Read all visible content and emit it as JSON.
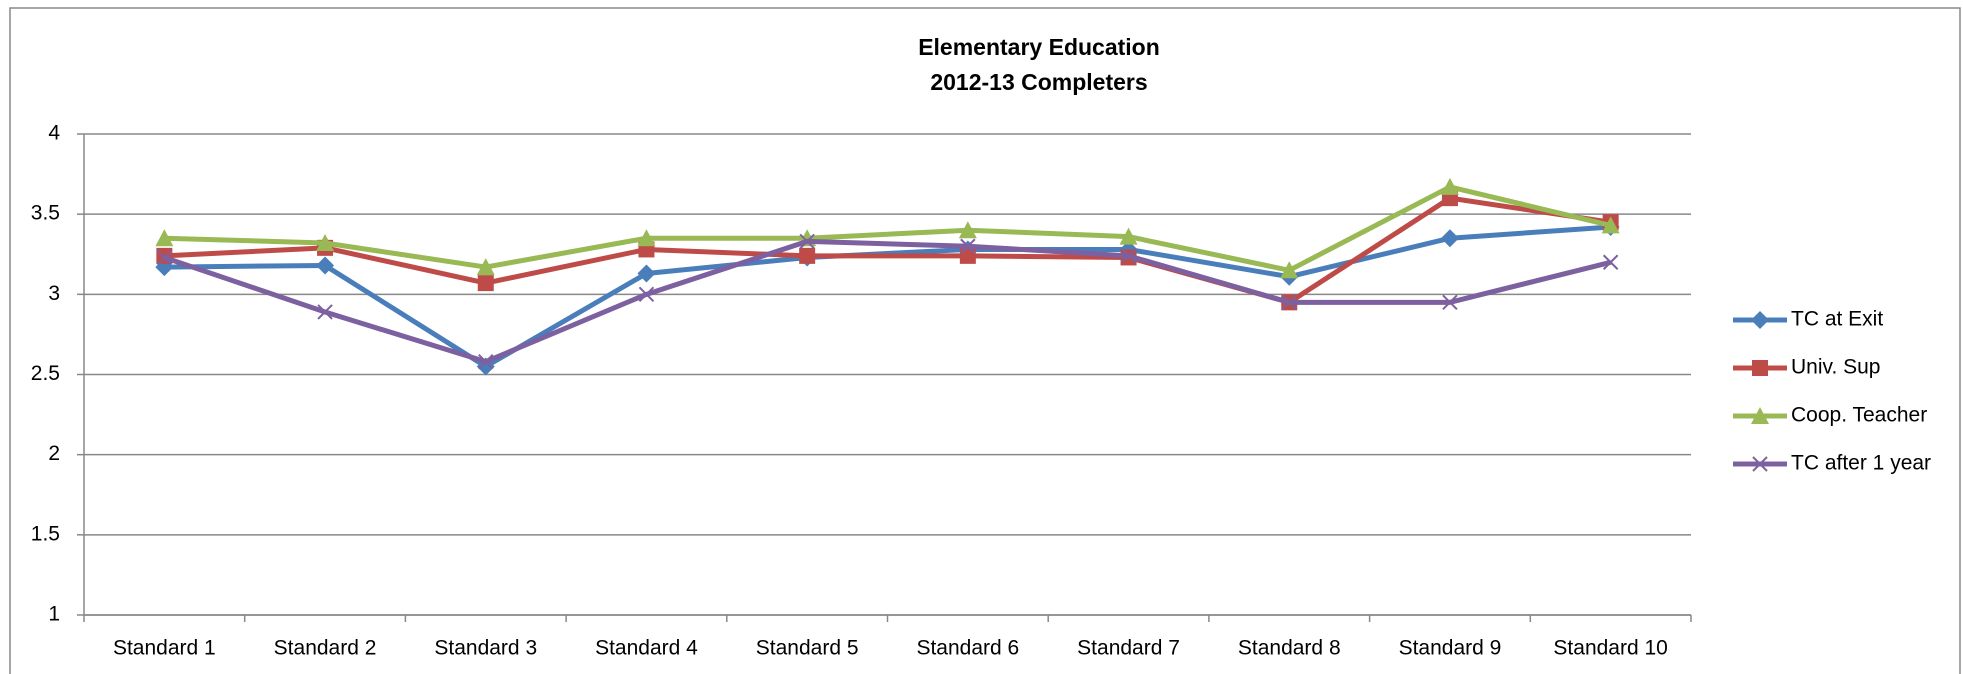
{
  "chart_data": {
    "type": "line",
    "title": "Elementary Education",
    "subtitle": "2012-13 Completers",
    "categories": [
      "Standard 1",
      "Standard 2",
      "Standard 3",
      "Standard 4",
      "Standard 5",
      "Standard 6",
      "Standard 7",
      "Standard 8",
      "Standard 9",
      "Standard 10"
    ],
    "series": [
      {
        "name": "TC at Exit",
        "color": "#4a7ebb",
        "marker": "diamond",
        "values": [
          3.17,
          3.18,
          2.55,
          3.13,
          3.23,
          3.28,
          3.28,
          3.11,
          3.35,
          3.42
        ]
      },
      {
        "name": "Univ. Sup",
        "color": "#be4b48",
        "marker": "square",
        "values": [
          3.24,
          3.29,
          3.07,
          3.28,
          3.24,
          3.24,
          3.23,
          2.95,
          3.6,
          3.45
        ]
      },
      {
        "name": "Coop. Teacher",
        "color": "#98b954",
        "marker": "triangle",
        "values": [
          3.35,
          3.32,
          3.17,
          3.35,
          3.35,
          3.4,
          3.36,
          3.15,
          3.67,
          3.43
        ]
      },
      {
        "name": "TC after 1 year",
        "color": "#7d60a0",
        "marker": "x",
        "values": [
          3.23,
          2.89,
          2.58,
          3.0,
          3.33,
          3.3,
          3.24,
          2.95,
          2.95,
          3.2
        ]
      }
    ],
    "ylim": [
      1,
      4
    ],
    "yticks": [
      1,
      1.5,
      2,
      2.5,
      3,
      3.5,
      4
    ],
    "grid": true,
    "legend": "right"
  }
}
